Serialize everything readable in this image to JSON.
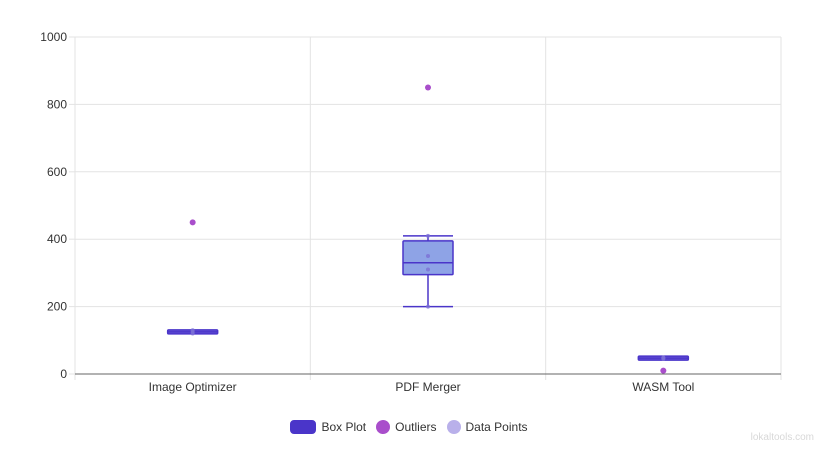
{
  "chart_data": {
    "type": "boxplot",
    "categories": [
      "Image Optimizer",
      "PDF Merger",
      "WASM Tool"
    ],
    "ylim": [
      0,
      1000
    ],
    "yticks": [
      0,
      200,
      400,
      600,
      800,
      1000
    ],
    "grid": true,
    "legend_position": "bottom",
    "boxes": [
      {
        "category": "Image Optimizer",
        "min": 120,
        "q1": 120,
        "median": 125,
        "q3": 130,
        "max": 130,
        "mean": 125,
        "outliers": [
          450
        ],
        "points": [
          120,
          125,
          130
        ]
      },
      {
        "category": "PDF Merger",
        "min": 200,
        "q1": 295,
        "median": 330,
        "q3": 395,
        "max": 410,
        "mean": 330,
        "outliers": [
          850
        ],
        "points": [
          200,
          310,
          350,
          410
        ]
      },
      {
        "category": "WASM Tool",
        "min": 45,
        "q1": 45,
        "median": 47,
        "q3": 49,
        "max": 49,
        "mean": 47,
        "outliers": [
          10
        ],
        "points": [
          45,
          47,
          49
        ]
      }
    ],
    "legend": [
      {
        "label": "Box Plot",
        "kind": "box",
        "fill": "#4a35c9",
        "stroke": "#4a35c9"
      },
      {
        "label": "Outliers",
        "kind": "dot",
        "fill": "#a94ecb"
      },
      {
        "label": "Data Points",
        "kind": "dot",
        "fill": "#b9b0ea"
      }
    ],
    "colors": {
      "box_fill": "#8ea3e6",
      "box_fill_compact": "#6a57d8",
      "box_stroke": "#4a35c9",
      "outlier": "#a94ecb",
      "point": "#7c6fd6",
      "grid": "#e3e3e3",
      "axis": "#666666"
    }
  },
  "watermark": "lokaltools.com"
}
